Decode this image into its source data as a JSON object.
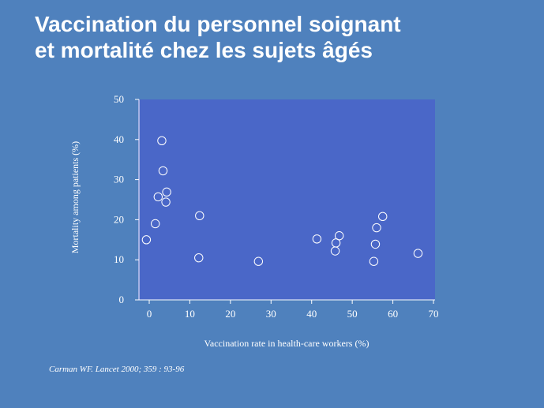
{
  "slide": {
    "title_line1": "Vaccination du personnel soignant",
    "title_line2": "et mortalité chez les sujets âgés",
    "citation": "Carman WF. Lancet 2000; 359 : 93-96",
    "background_color": "#4f81bd",
    "plot_background_color": "#4a67c8"
  },
  "chart_data": {
    "type": "scatter",
    "title": "",
    "xlabel": "Vaccination rate in health-care workers (%)",
    "ylabel": "Mortality among patients (%)",
    "xlim": [
      0,
      70
    ],
    "ylim": [
      0,
      50
    ],
    "xticks": [
      0,
      10,
      20,
      30,
      40,
      50,
      60,
      70
    ],
    "yticks": [
      0,
      10,
      20,
      30,
      40,
      50
    ],
    "grid": false,
    "marker": "hollow-circle",
    "x": [
      -0.7,
      1.5,
      2.2,
      3.1,
      3.4,
      4.1,
      4.3,
      12.4,
      12.2,
      26.9,
      41.3,
      45.8,
      46.0,
      46.8,
      55.3,
      55.7,
      56.0,
      57.5,
      66.2
    ],
    "y": [
      15,
      19,
      25.7,
      39.7,
      32.2,
      24.4,
      26.9,
      21,
      10.5,
      9.6,
      15.2,
      12.2,
      14.2,
      16,
      9.6,
      13.9,
      18,
      20.8,
      11.6
    ]
  }
}
